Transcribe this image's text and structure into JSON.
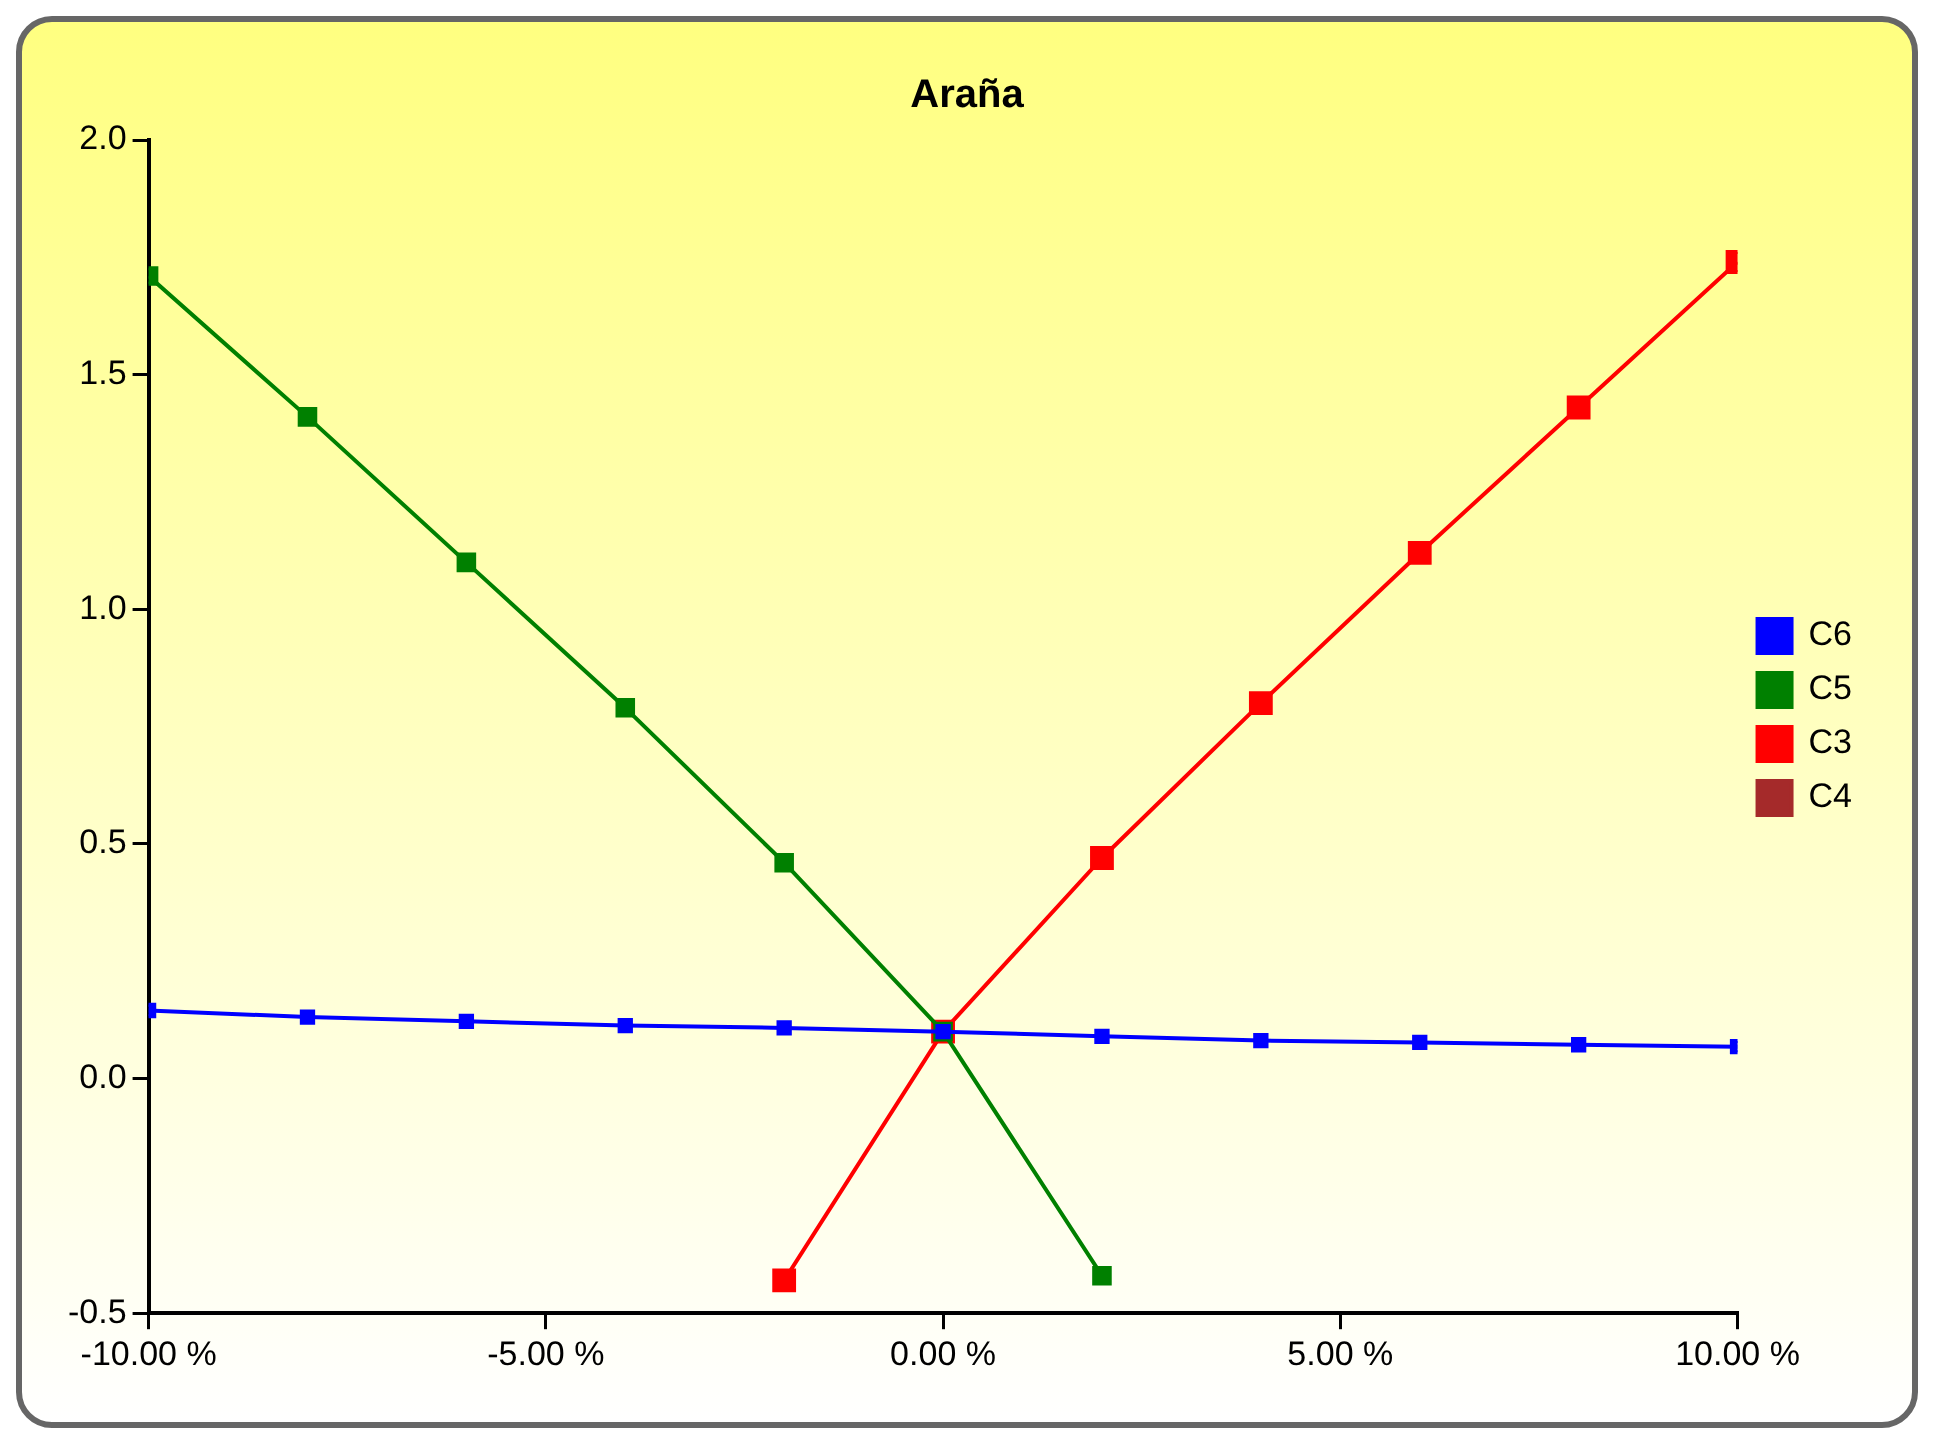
{
  "chart_data": {
    "type": "line",
    "title": "Araña",
    "x": [
      -10,
      -8,
      -6,
      -4,
      -2,
      0,
      2,
      4,
      6,
      8,
      10
    ],
    "series": [
      {
        "name": "C6",
        "color": "#0000ff",
        "values": [
          0.145,
          0.131,
          0.122,
          0.113,
          0.108,
          0.1,
          0.09,
          0.081,
          0.077,
          0.072,
          0.068
        ]
      },
      {
        "name": "C5",
        "color": "#008000",
        "values": [
          1.71,
          1.41,
          1.1,
          0.79,
          0.46,
          0.1,
          -0.42,
          null,
          null,
          null,
          null
        ]
      },
      {
        "name": "C3",
        "color": "#ff0000",
        "values": [
          null,
          null,
          null,
          null,
          -0.43,
          0.1,
          0.47,
          0.8,
          1.12,
          1.43,
          1.74
        ]
      },
      {
        "name": "C4",
        "color": "#a52a2a",
        "values": [
          null,
          null,
          null,
          null,
          null,
          null,
          null,
          null,
          null,
          null,
          null
        ]
      }
    ],
    "xlim": [
      -10,
      10
    ],
    "xticks": [
      {
        "value": -10,
        "label": "-10.00 %"
      },
      {
        "value": -5,
        "label": "-5.00 %"
      },
      {
        "value": 0,
        "label": "0.00 %"
      },
      {
        "value": 5,
        "label": "5.00 %"
      },
      {
        "value": 10,
        "label": "10.00 %"
      }
    ],
    "ylim": [
      -0.5,
      2
    ],
    "yticks": [
      {
        "value": -0.5,
        "label": "-0.5"
      },
      {
        "value": 0,
        "label": "0.0"
      },
      {
        "value": 0.5,
        "label": "0.5"
      },
      {
        "value": 1,
        "label": "1.0"
      },
      {
        "value": 1.5,
        "label": "1.5"
      },
      {
        "value": 2,
        "label": "2.0"
      }
    ],
    "grid": false,
    "legend": "right",
    "marker": "square",
    "line_style": "solid"
  }
}
